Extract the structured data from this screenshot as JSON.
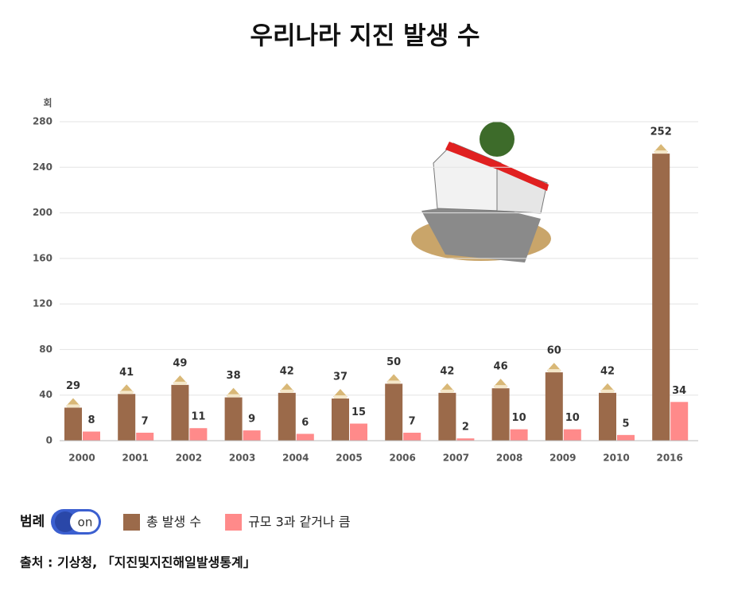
{
  "chart_data": {
    "type": "bar",
    "title": "우리나라 지진 발생 수",
    "y_unit": "회",
    "categories": [
      "2000",
      "2001",
      "2002",
      "2003",
      "2004",
      "2005",
      "2006",
      "2007",
      "2008",
      "2009",
      "2010",
      "2016"
    ],
    "series": [
      {
        "name": "총 발생 수",
        "color": "#9b6a4a",
        "values": [
          29,
          41,
          49,
          38,
          42,
          37,
          50,
          42,
          46,
          60,
          42,
          252
        ]
      },
      {
        "name": "규모 3과 같거나 큼",
        "color": "#ff8a8a",
        "values": [
          8,
          7,
          11,
          9,
          6,
          15,
          7,
          2,
          10,
          10,
          5,
          34
        ]
      }
    ],
    "ylim": [
      0,
      280
    ],
    "yticks": [
      0,
      40,
      80,
      120,
      160,
      200,
      240,
      280
    ],
    "grid": true,
    "legend_title": "범례",
    "legend_toggle": "on",
    "source": "출처 : 기상청, 「지진및지진해일발생통계」"
  }
}
